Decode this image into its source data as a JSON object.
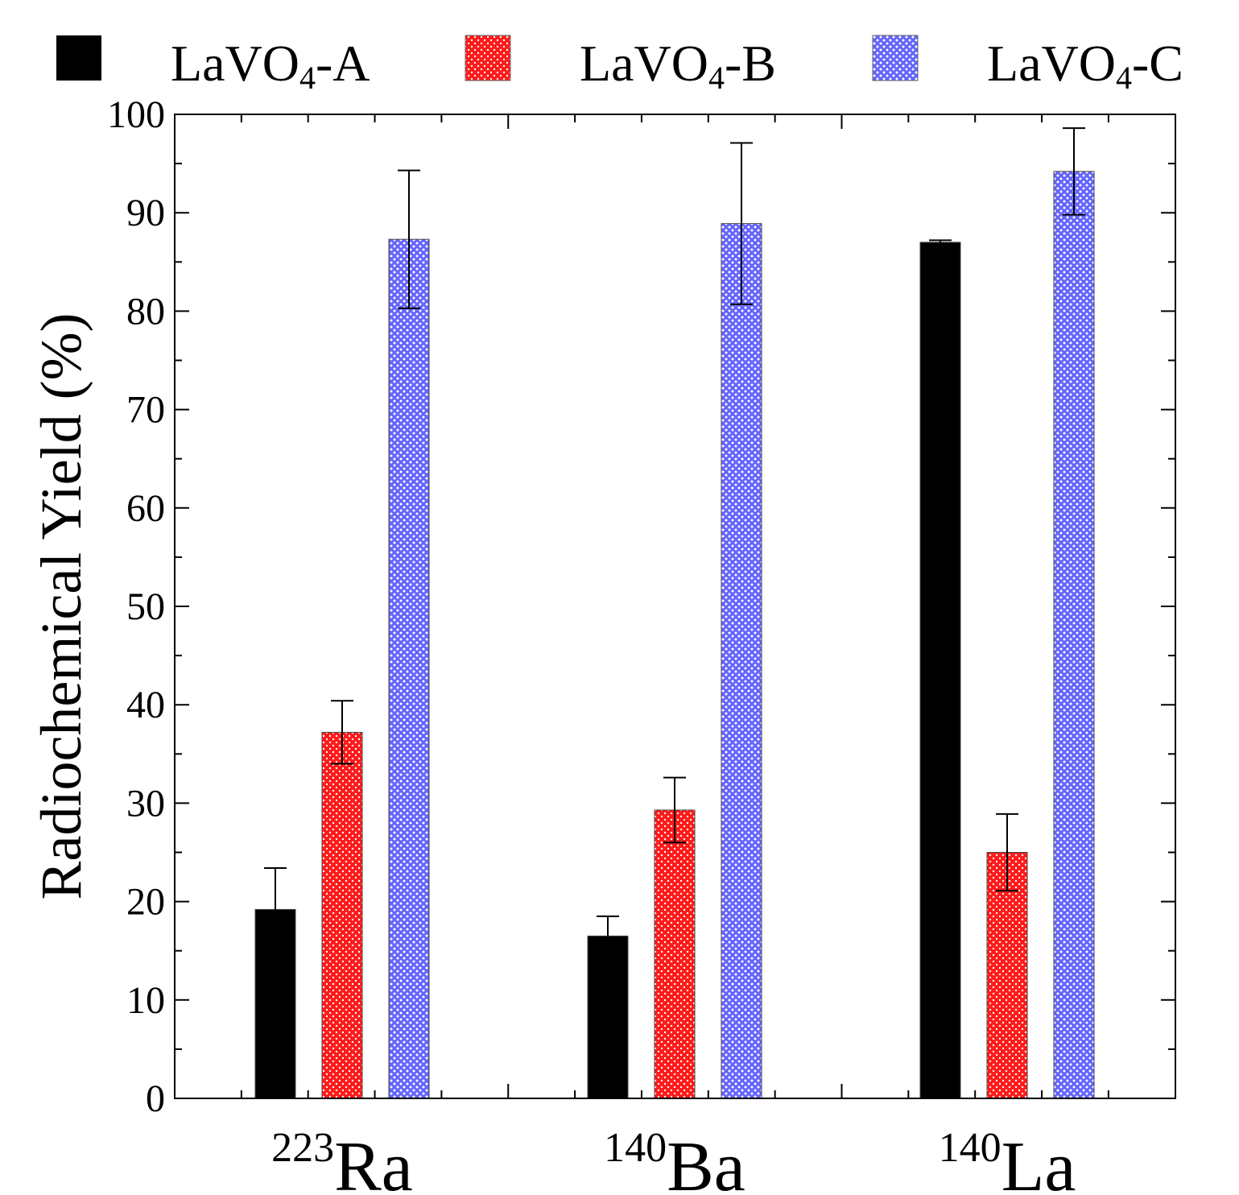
{
  "chart_data": {
    "type": "bar",
    "title": "",
    "xlabel": "",
    "ylabel": "Radiochemical Yield (%)",
    "ylim": [
      0,
      100
    ],
    "yticks": [
      0,
      10,
      20,
      30,
      40,
      50,
      60,
      70,
      80,
      90,
      100
    ],
    "grid": false,
    "legend_position": "top",
    "categories": [
      {
        "sup": "223",
        "base": "Ra"
      },
      {
        "sup": "140",
        "base": "Ba"
      },
      {
        "sup": "140",
        "base": "La"
      }
    ],
    "series": [
      {
        "name": "LaVO4-A",
        "name_base": "LaVO",
        "name_sub": "4",
        "name_suffix": "-A",
        "color": "#000000",
        "pattern": "solid",
        "values": [
          19.2,
          16.5,
          87.0
        ],
        "errors": [
          4.2,
          2.0,
          0.2
        ]
      },
      {
        "name": "LaVO4-B",
        "name_base": "LaVO",
        "name_sub": "4",
        "name_suffix": "-B",
        "color": "#ff1a1a",
        "pattern": "red-crosshatch",
        "values": [
          37.2,
          29.3,
          25.0
        ],
        "errors": [
          3.2,
          3.3,
          3.9
        ]
      },
      {
        "name": "LaVO4-C",
        "name_base": "LaVO",
        "name_sub": "4",
        "name_suffix": "-C",
        "color": "#3a3aff",
        "pattern": "blue-crosshatch",
        "values": [
          87.3,
          88.9,
          94.2
        ],
        "errors": [
          7.0,
          8.2,
          4.4
        ]
      }
    ]
  }
}
